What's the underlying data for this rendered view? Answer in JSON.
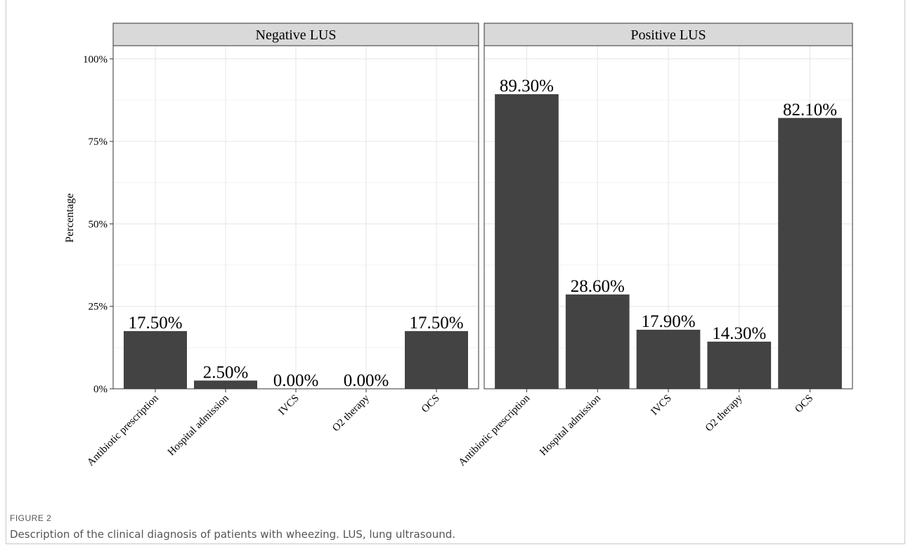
{
  "figure": {
    "label": "FIGURE 2",
    "caption": "Description of the clinical diagnosis of patients with wheezing. LUS, lung ultrasound."
  },
  "colors": {
    "bar": "#434343",
    "strip": "#d9d9d9",
    "grid_major": "#e6e6e6",
    "grid_minor": "#f2f2f2",
    "panel_border": "#333333"
  },
  "chart_data": {
    "type": "bar",
    "ylabel": "Percentage",
    "ylim": [
      0,
      104
    ],
    "yticks": [
      0,
      25,
      50,
      75,
      100
    ],
    "ytick_labels": [
      "0%",
      "25%",
      "50%",
      "75%",
      "100%"
    ],
    "categories": [
      "Antibiotic prescription",
      "Hospital admission",
      "IVCS",
      "O2 therapy",
      "OCS"
    ],
    "grid": true,
    "panels": [
      {
        "name": "Negative LUS",
        "values": [
          17.5,
          2.5,
          0.0,
          0.0,
          17.5
        ],
        "value_labels": [
          "17.50%",
          "2.50%",
          "0.00%",
          "0.00%",
          "17.50%"
        ]
      },
      {
        "name": "Positive LUS",
        "values": [
          89.3,
          28.6,
          17.9,
          14.3,
          82.1
        ],
        "value_labels": [
          "89.30%",
          "28.60%",
          "17.90%",
          "14.30%",
          "82.10%"
        ]
      }
    ]
  }
}
